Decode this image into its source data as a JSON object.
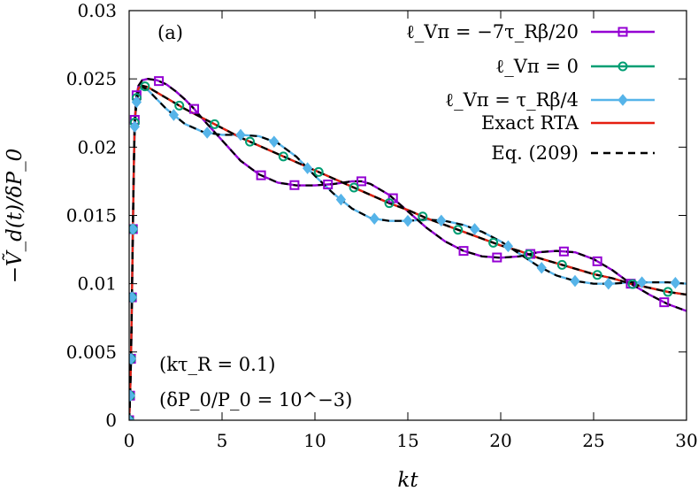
{
  "chart_data": {
    "type": "line",
    "panel_label": "(a)",
    "xlabel": "kt",
    "ylabel": "−Ṽ_d(t)/δP_0",
    "xlim": [
      0,
      30
    ],
    "ylim": [
      0,
      0.03
    ],
    "x_ticks": [
      0,
      5,
      10,
      15,
      20,
      25,
      30
    ],
    "x_tick_labels": [
      "0",
      "5",
      "10",
      "15",
      "20",
      "25",
      "30"
    ],
    "y_ticks": [
      0,
      0.005,
      0.01,
      0.015,
      0.02,
      0.025,
      0.03
    ],
    "y_tick_labels": [
      "0",
      "0.005",
      "0.01",
      "0.015",
      "0.02",
      "0.025",
      "0.03"
    ],
    "legend_position": "top-right",
    "annotations": [
      "(kτ_R = 0.1)",
      "(δP_0/P_0 = 10^−3)"
    ],
    "colors": {
      "purple": "#9400d3",
      "green": "#009e73",
      "skyblue": "#56b4e9",
      "red": "#e51e10",
      "black": "#000000"
    },
    "series": [
      {
        "name": "ℓ_Vπ = −7τ_Rβ/20",
        "color": "#9400d3",
        "marker": "square",
        "x": [
          0,
          0.05,
          0.1,
          0.15,
          0.2,
          0.25,
          0.3,
          0.4,
          0.5,
          0.7,
          1.0,
          1.5,
          2,
          2.5,
          3,
          3.5,
          4,
          5,
          6,
          7,
          8,
          9,
          10,
          11,
          12,
          12.5,
          13,
          14,
          15,
          16,
          17,
          18,
          19,
          20,
          21,
          22,
          23,
          24,
          25,
          26,
          27,
          28,
          29,
          30
        ],
        "y": [
          0,
          0.0018,
          0.0045,
          0.009,
          0.014,
          0.0185,
          0.022,
          0.0238,
          0.0245,
          0.0249,
          0.025,
          0.0249,
          0.0246,
          0.0241,
          0.0235,
          0.0228,
          0.022,
          0.0205,
          0.019,
          0.018,
          0.0174,
          0.0172,
          0.0172,
          0.0173,
          0.0175,
          0.0175,
          0.0173,
          0.0165,
          0.0153,
          0.0141,
          0.0131,
          0.0124,
          0.012,
          0.0119,
          0.012,
          0.0123,
          0.0124,
          0.0123,
          0.0118,
          0.011,
          0.01,
          0.0092,
          0.0085,
          0.008
        ],
        "markers_x": [
          0,
          0.05,
          0.1,
          0.15,
          0.2,
          0.3,
          0.4,
          1.6,
          3.5,
          7.1,
          8.9,
          10.7,
          12.5,
          14.2,
          18.0,
          19.8,
          21.6,
          23.4,
          25.2,
          27.0,
          28.8
        ]
      },
      {
        "name": "ℓ_Vπ = 0",
        "color": "#009e73",
        "marker": "circle",
        "x": [
          0,
          0.05,
          0.1,
          0.15,
          0.2,
          0.25,
          0.3,
          0.4,
          0.5,
          0.7,
          1.0,
          1.5,
          2,
          3,
          4,
          5,
          6,
          7,
          8,
          9,
          10,
          11,
          12,
          13,
          14,
          15,
          16,
          17,
          18,
          19,
          20,
          21,
          22,
          23,
          24,
          25,
          26,
          27,
          28,
          29,
          30
        ],
        "y": [
          0,
          0.0018,
          0.0045,
          0.009,
          0.014,
          0.0185,
          0.0218,
          0.0236,
          0.0243,
          0.0245,
          0.0244,
          0.024,
          0.0236,
          0.0228,
          0.0221,
          0.0214,
          0.0207,
          0.0201,
          0.0195,
          0.0189,
          0.0183,
          0.0177,
          0.0171,
          0.0165,
          0.0159,
          0.0154,
          0.0148,
          0.0143,
          0.0138,
          0.0133,
          0.0128,
          0.0124,
          0.0119,
          0.0115,
          0.0111,
          0.0107,
          0.0104,
          0.01,
          0.0097,
          0.0094,
          0.0092
        ],
        "markers_x": [
          0,
          0.05,
          0.1,
          0.15,
          0.2,
          0.3,
          0.4,
          0.85,
          2.7,
          4.6,
          6.5,
          8.3,
          10.2,
          12.1,
          14.0,
          15.8,
          17.7,
          19.6,
          21.5,
          23.3,
          25.2,
          27.1,
          29.0
        ]
      },
      {
        "name": "ℓ_Vπ = τ_Rβ/4",
        "color": "#56b4e9",
        "marker": "diamond",
        "x": [
          0,
          0.05,
          0.1,
          0.15,
          0.2,
          0.25,
          0.3,
          0.4,
          0.5,
          0.7,
          1.0,
          1.5,
          2,
          3,
          4,
          5,
          6,
          7,
          8,
          9,
          10,
          11,
          12,
          13,
          14,
          15,
          16,
          17,
          18,
          19,
          20,
          21,
          22,
          23,
          24,
          25,
          26,
          27,
          28,
          29,
          30
        ],
        "y": [
          0,
          0.0018,
          0.0045,
          0.009,
          0.014,
          0.0185,
          0.0215,
          0.0233,
          0.024,
          0.0244,
          0.0242,
          0.0235,
          0.0228,
          0.0217,
          0.0211,
          0.0209,
          0.0209,
          0.0208,
          0.0203,
          0.0193,
          0.0179,
          0.0166,
          0.0155,
          0.0148,
          0.0146,
          0.0146,
          0.0147,
          0.0146,
          0.0143,
          0.0138,
          0.0131,
          0.0122,
          0.0113,
          0.0106,
          0.0102,
          0.01,
          0.01,
          0.0101,
          0.0101,
          0.0101,
          0.01
        ],
        "markers_x": [
          0,
          0.05,
          0.1,
          0.15,
          0.2,
          0.3,
          0.4,
          2.4,
          4.2,
          6.0,
          7.8,
          9.6,
          11.4,
          13.2,
          15.0,
          16.8,
          18.6,
          20.4,
          22.2,
          24.0,
          25.8,
          27.6,
          29.4
        ]
      },
      {
        "name": "Exact RTA",
        "color": "#e51e10",
        "marker": "none",
        "x": [
          0,
          0.05,
          0.1,
          0.15,
          0.2,
          0.25,
          0.3,
          0.4,
          0.5,
          0.7,
          1.0,
          1.5,
          2,
          3,
          4,
          5,
          6,
          7,
          8,
          9,
          10,
          11,
          12,
          13,
          14,
          15,
          16,
          17,
          18,
          19,
          20,
          21,
          22,
          23,
          24,
          25,
          26,
          27,
          28,
          29,
          30
        ],
        "y": [
          0,
          0.0018,
          0.0045,
          0.009,
          0.014,
          0.0185,
          0.0218,
          0.0236,
          0.0243,
          0.0245,
          0.0244,
          0.024,
          0.0236,
          0.0228,
          0.0221,
          0.0214,
          0.0207,
          0.0201,
          0.0195,
          0.0189,
          0.0183,
          0.0177,
          0.0171,
          0.0165,
          0.0159,
          0.0154,
          0.0148,
          0.0143,
          0.0138,
          0.0133,
          0.0128,
          0.0124,
          0.0119,
          0.0115,
          0.0111,
          0.0107,
          0.0104,
          0.01,
          0.0097,
          0.0094,
          0.0092
        ]
      },
      {
        "name": "Eq. (209)",
        "color": "#000000",
        "marker": "none",
        "dashed": true,
        "overlays": [
          "ℓ_Vπ = −7τ_Rβ/20",
          "ℓ_Vπ = 0",
          "ℓ_Vπ = τ_Rβ/4"
        ]
      }
    ]
  }
}
